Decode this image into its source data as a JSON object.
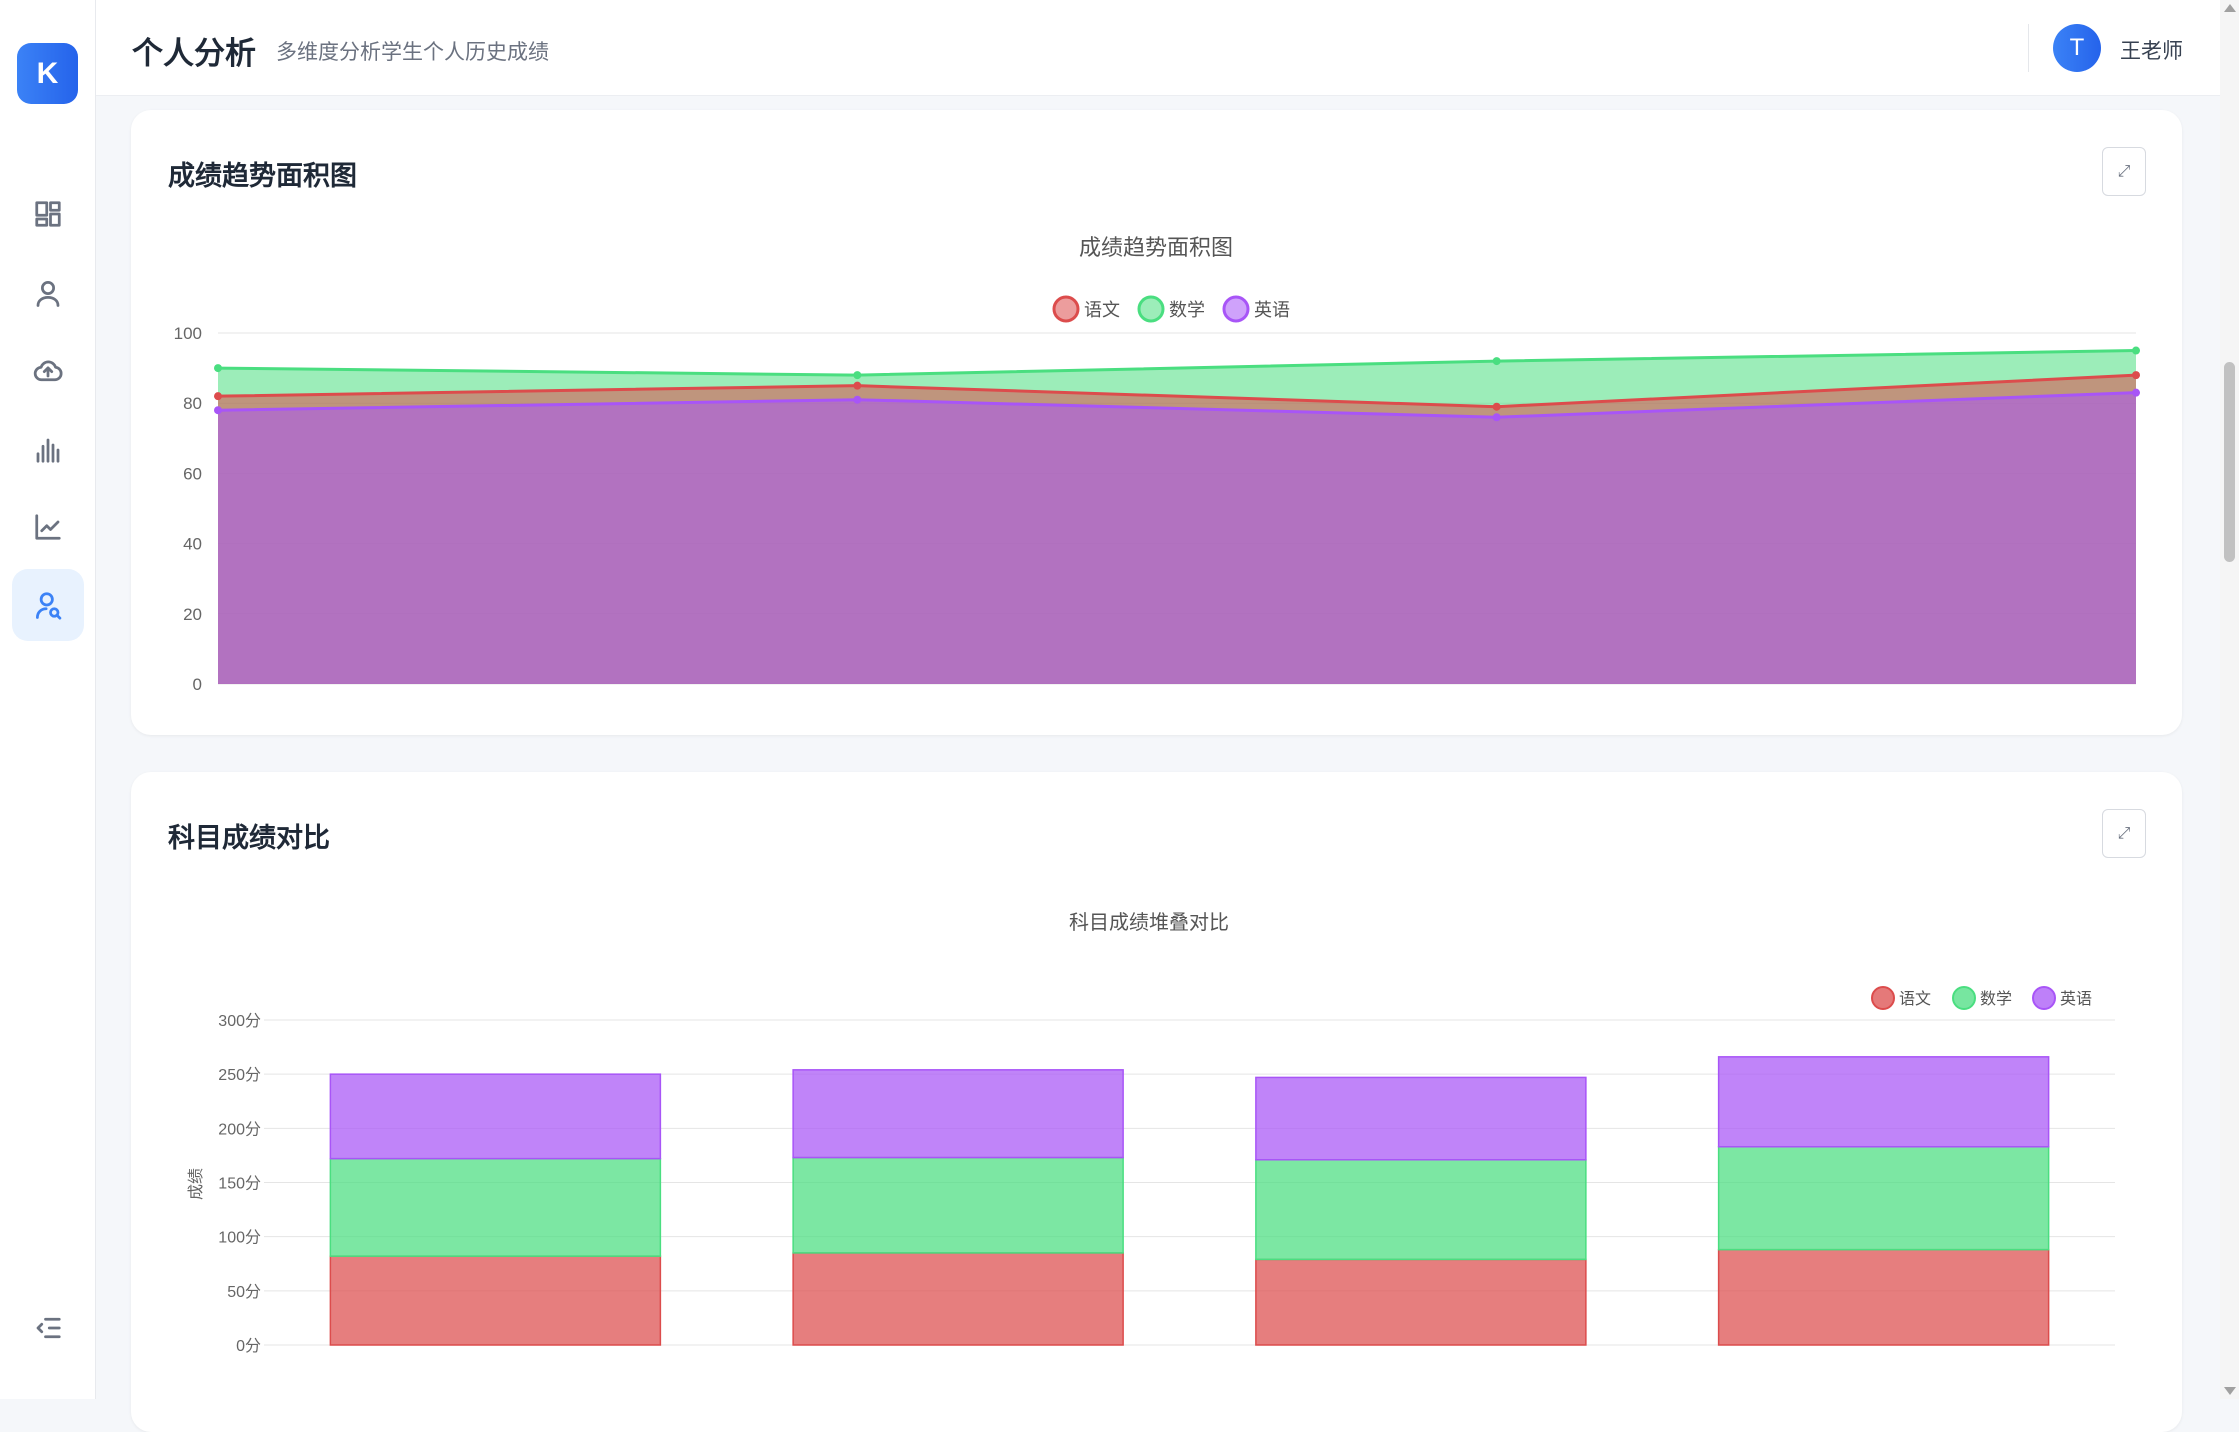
{
  "app": {
    "logo_letter": "K"
  },
  "sidebar": {
    "items": [
      {
        "name": "dashboard",
        "icon": "dashboard-icon"
      },
      {
        "name": "students",
        "icon": "user-icon"
      },
      {
        "name": "upload",
        "icon": "cloud-upload-icon"
      },
      {
        "name": "statistics",
        "icon": "bar-chart-icon"
      },
      {
        "name": "trends",
        "icon": "line-chart-icon"
      },
      {
        "name": "personal-analysis",
        "icon": "user-search-icon",
        "active": true
      }
    ],
    "collapse_icon": "menu-fold-icon"
  },
  "header": {
    "title": "个人分析",
    "subtitle": "多维度分析学生个人历史成绩",
    "user": {
      "avatar_letter": "T",
      "name": "王老师"
    }
  },
  "colors": {
    "chinese": "#dc4c4c",
    "math": "#4ade80",
    "english": "#a855f7",
    "accent": "#3b82f6"
  },
  "cards": [
    {
      "title": "成绩趋势面积图",
      "expand_icon": "expand-icon"
    },
    {
      "title": "科目成绩对比",
      "expand_icon": "expand-icon"
    }
  ],
  "chart_data": [
    {
      "type": "area",
      "title": "成绩趋势面积图",
      "legend": [
        "语文",
        "数学",
        "英语"
      ],
      "legend_position": "top-center",
      "ylim": [
        0,
        100
      ],
      "yticks": [
        "0",
        "20",
        "40",
        "60",
        "80",
        "100"
      ],
      "x_count": 4,
      "series": [
        {
          "name": "语文",
          "values": [
            82,
            85,
            79,
            88
          ]
        },
        {
          "name": "数学",
          "values": [
            90,
            88,
            92,
            95
          ]
        },
        {
          "name": "英语",
          "values": [
            78,
            81,
            76,
            83
          ]
        }
      ]
    },
    {
      "type": "bar",
      "stacked": true,
      "title": "科目成绩堆叠对比",
      "ylabel": "成绩",
      "legend": [
        "语文",
        "数学",
        "英语"
      ],
      "legend_position": "top-right",
      "ylim": [
        0,
        300
      ],
      "yticks": [
        "0分",
        "50分",
        "100分",
        "150分",
        "200分",
        "250分",
        "300分"
      ],
      "x_count": 4,
      "series": [
        {
          "name": "语文",
          "values": [
            82,
            85,
            79,
            88
          ]
        },
        {
          "name": "数学",
          "values": [
            90,
            88,
            92,
            95
          ]
        },
        {
          "name": "英语",
          "values": [
            78,
            81,
            76,
            83
          ]
        }
      ]
    }
  ]
}
